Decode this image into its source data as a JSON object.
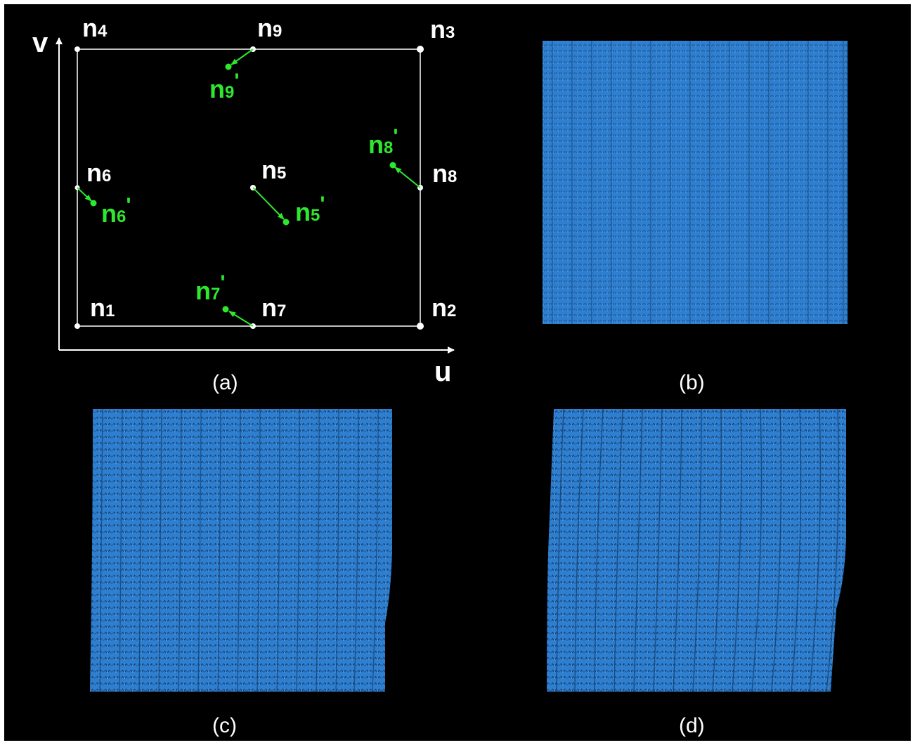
{
  "axes": {
    "u": "u",
    "v": "v"
  },
  "captions": {
    "a": "(a)",
    "b": "(b)",
    "c": "(c)",
    "d": "(d)"
  },
  "nodes": {
    "n1": {
      "base": "n",
      "sub": "1"
    },
    "n2": {
      "base": "n",
      "sub": "2"
    },
    "n3": {
      "base": "n",
      "sub": "3"
    },
    "n4": {
      "base": "n",
      "sub": "4"
    },
    "n5": {
      "base": "n",
      "sub": "5"
    },
    "n6": {
      "base": "n",
      "sub": "6"
    },
    "n7": {
      "base": "n",
      "sub": "7"
    },
    "n8": {
      "base": "n",
      "sub": "8"
    },
    "n9": {
      "base": "n",
      "sub": "9"
    }
  },
  "moved_nodes": {
    "n5p": {
      "base": "n",
      "sub": "5",
      "prime": "'"
    },
    "n6p": {
      "base": "n",
      "sub": "6",
      "prime": "'"
    },
    "n7p": {
      "base": "n",
      "sub": "7",
      "prime": "'"
    },
    "n8p": {
      "base": "n",
      "sub": "8",
      "prime": "'"
    },
    "n9p": {
      "base": "n",
      "sub": "9",
      "prime": "'"
    }
  },
  "colors": {
    "background": "#000000",
    "grid_line": "#ffffff",
    "moved": "#2ee82e",
    "fabric": "#2f7fd0",
    "fabric_dark": "#1c5a9c",
    "fabric_light": "#4f9ae4"
  }
}
